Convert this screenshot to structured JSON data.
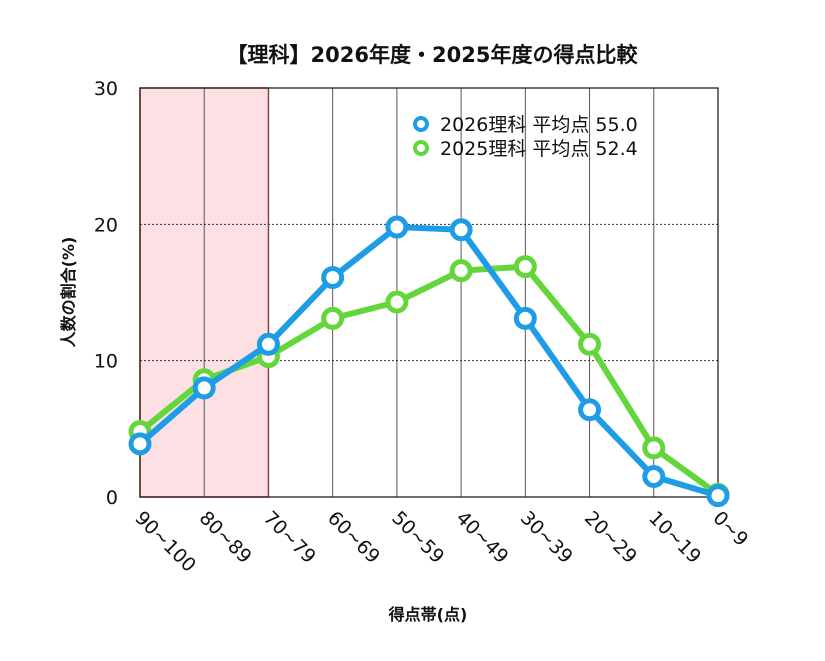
{
  "chart_data": {
    "type": "line",
    "title": "【理科】2026年度・2025年度の得点比較",
    "xlabel": "得点帯(点)",
    "ylabel": "人数の割合(%)",
    "ylim": [
      0,
      30
    ],
    "yticks": [
      "0",
      "10",
      "20",
      "30"
    ],
    "categories": [
      "90~100",
      "80~89",
      "70~79",
      "60~69",
      "50~59",
      "40~49",
      "30~39",
      "20~29",
      "10~19",
      "0~9"
    ],
    "highlight_range": [
      "90~100",
      "70~79"
    ],
    "grid": true,
    "legend_position": "top-right",
    "series": [
      {
        "name": "2026理科",
        "legend_label": "2026理科  平均点 55.0",
        "color": "#1e9de6",
        "values": [
          3.9,
          8.0,
          11.2,
          16.1,
          19.8,
          19.6,
          13.1,
          6.4,
          1.5,
          0.1
        ]
      },
      {
        "name": "2025理科",
        "legend_label": "2025理科  平均点 52.4",
        "color": "#62d63a",
        "values": [
          4.8,
          8.6,
          10.3,
          13.1,
          14.3,
          16.6,
          16.9,
          11.2,
          3.6,
          0.2
        ]
      }
    ],
    "highlight_color": "#e53935"
  }
}
